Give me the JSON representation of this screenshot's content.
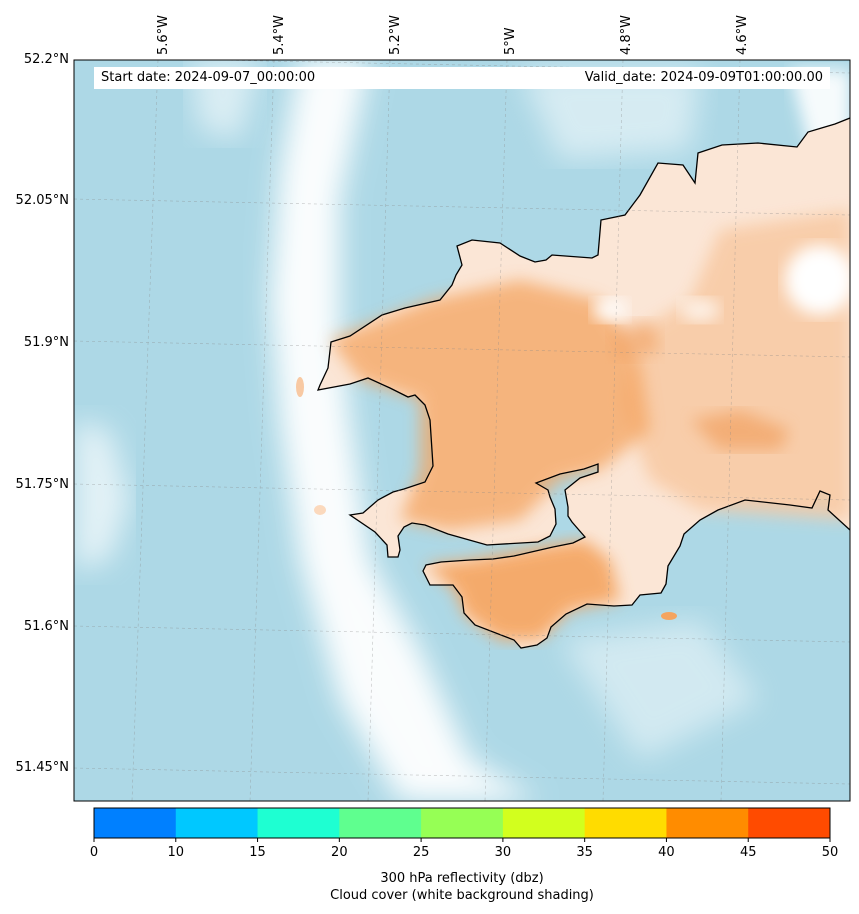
{
  "banner": {
    "start_label": "Start date: 2024-09-07_00:00:00",
    "valid_label": "Valid_date: 2024-09-09T01:00:00.00"
  },
  "lat_labels": [
    "52.2°N",
    "52.05°N",
    "51.9°N",
    "51.75°N",
    "51.6°N",
    "51.45°N"
  ],
  "lon_labels": [
    "5.6°W",
    "5.4°W",
    "5.2°W",
    "5°W",
    "4.8°W",
    "4.6°W"
  ],
  "colorbar": {
    "ticks": [
      "0",
      "10",
      "15",
      "20",
      "25",
      "30",
      "35",
      "40",
      "45",
      "50"
    ],
    "colors": [
      "#0080ff",
      "#00c8ff",
      "#1effd2",
      "#5fff8f",
      "#96ff55",
      "#d2ff1e",
      "#ffdc00",
      "#ff8c00",
      "#ff4b00"
    ],
    "label_line1": "300 hPa reflectivity (dbz)",
    "label_line2": "Cloud cover (white background shading)"
  },
  "colors": {
    "sea": "#add8e6",
    "land_precip": "#f4a460",
    "coastline": "#000000"
  }
}
